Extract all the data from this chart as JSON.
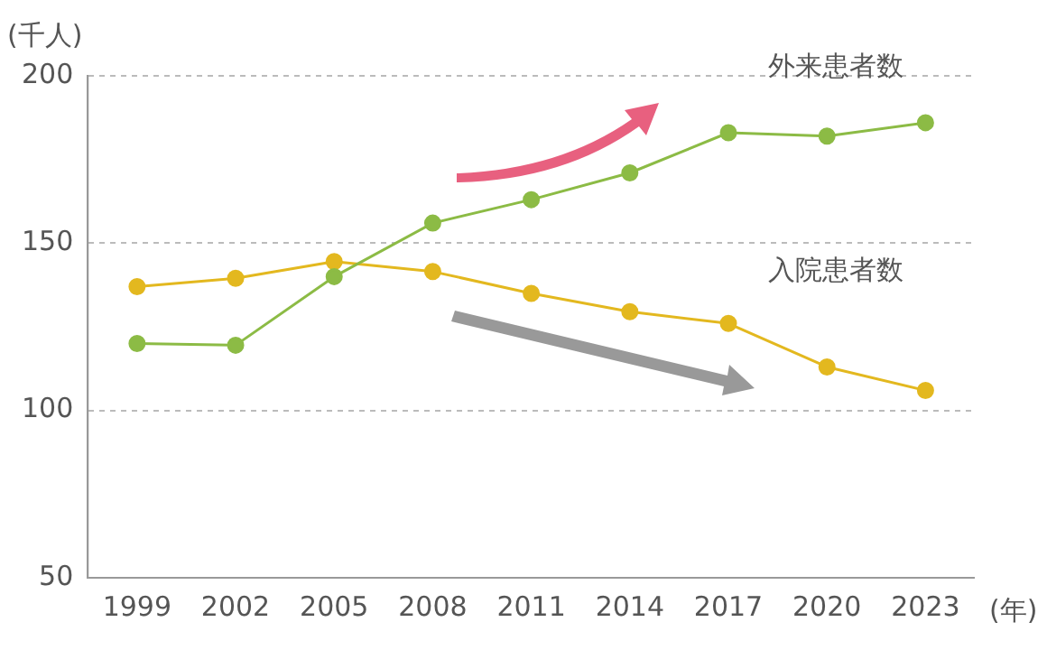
{
  "chart_data": {
    "type": "line",
    "ylabel": "(千人)",
    "xlabel": "(年)",
    "categories": [
      "1999",
      "2002",
      "2005",
      "2008",
      "2011",
      "2014",
      "2017",
      "2020",
      "2023"
    ],
    "series": [
      {
        "name": "外来患者数",
        "color": "#8cbb45",
        "values": [
          120,
          119.5,
          140,
          156,
          163,
          171,
          183,
          182,
          186
        ]
      },
      {
        "name": "入院患者数",
        "color": "#e3b81f",
        "values": [
          137,
          139.5,
          144.5,
          141.5,
          135,
          129.5,
          126,
          113,
          106
        ]
      }
    ],
    "ylim": [
      50,
      200
    ],
    "yticks": [
      50,
      100,
      150,
      200
    ],
    "grid": "y",
    "legend": false,
    "marker": "circle",
    "line_style": "solid"
  }
}
